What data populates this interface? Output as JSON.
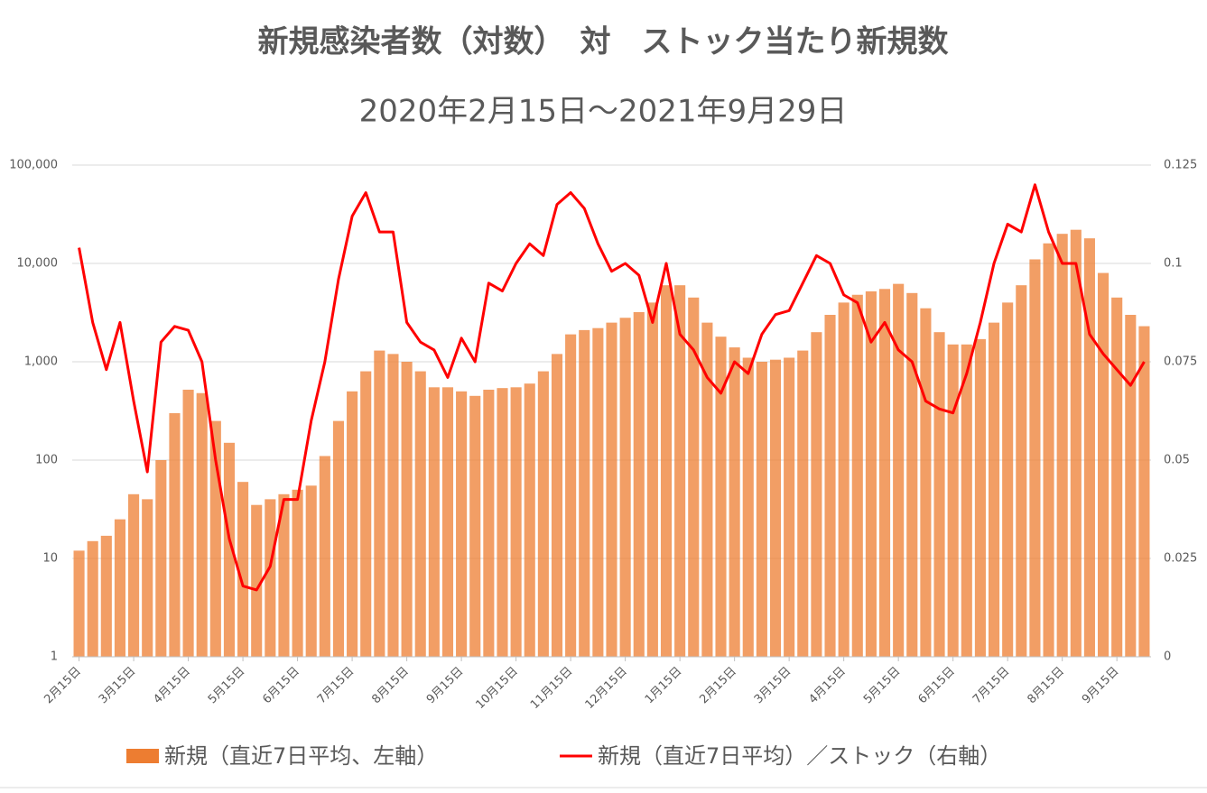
{
  "chart_data": {
    "type": "bar",
    "title": "新規感染者数（対数）　対　ストック当たり新規数",
    "subtitle": "2020年2月15日～2021年9月29日",
    "categories": [
      "2月15日",
      null,
      null,
      null,
      "3月15日",
      null,
      null,
      null,
      "4月15日",
      null,
      null,
      null,
      "5月15日",
      null,
      null,
      null,
      "6月15日",
      null,
      null,
      null,
      "7月15日",
      null,
      null,
      null,
      "8月15日",
      null,
      null,
      null,
      "9月15日",
      null,
      null,
      null,
      "10月15日",
      null,
      null,
      null,
      "11月15日",
      null,
      null,
      null,
      "12月15日",
      null,
      null,
      null,
      "1月15日",
      null,
      null,
      null,
      "2月15日",
      null,
      null,
      null,
      "3月15日",
      null,
      null,
      null,
      "4月15日",
      null,
      null,
      null,
      "5月15日",
      null,
      null,
      null,
      "6月15日",
      null,
      null,
      null,
      "7月15日",
      null,
      null,
      null,
      "8月15日",
      null,
      null,
      null,
      "9月15日",
      null,
      null
    ],
    "ylim": [
      1,
      100000
    ],
    "log_scale": true,
    "yticks": [
      1,
      10,
      100,
      {
        "value": 1000,
        "label": "1,000"
      },
      {
        "value": 10000,
        "label": "10,000"
      },
      {
        "value": 100000,
        "label": "100,000"
      }
    ],
    "y2lim": [
      0,
      0.125
    ],
    "y2ticks": [
      0,
      0.025,
      0.05,
      0.075,
      0.1,
      0.125
    ],
    "grid": true,
    "series": [
      {
        "name": "新規（直近7日平均、左軸）",
        "type": "bar",
        "color": "#ed7d31",
        "values": [
          12,
          15,
          17,
          25,
          45,
          40,
          100,
          300,
          520,
          480,
          250,
          150,
          60,
          35,
          40,
          45,
          50,
          55,
          110,
          250,
          500,
          800,
          1300,
          1200,
          1000,
          800,
          550,
          550,
          500,
          450,
          520,
          540,
          550,
          600,
          800,
          1200,
          1900,
          2100,
          2200,
          2500,
          2800,
          3200,
          4000,
          6000,
          6000,
          4500,
          2500,
          1800,
          1400,
          1100,
          1000,
          1050,
          1100,
          1300,
          2000,
          3000,
          4000,
          4800,
          5200,
          5500,
          6200,
          5000,
          3500,
          2000,
          1500,
          1500,
          1700,
          2500,
          4000,
          6000,
          11000,
          16000,
          20000,
          22000,
          18000,
          8000,
          4500,
          3000,
          2300
        ]
      },
      {
        "name": "新規（直近7日平均）／ストック（右軸）",
        "type": "line",
        "axis": "y2",
        "color": "#ff0000",
        "values": [
          0.104,
          0.085,
          0.073,
          0.085,
          0.065,
          0.047,
          0.08,
          0.084,
          0.083,
          0.075,
          0.05,
          0.03,
          0.018,
          0.017,
          0.023,
          0.04,
          0.04,
          0.06,
          0.075,
          0.096,
          0.112,
          0.118,
          0.108,
          0.108,
          0.085,
          0.08,
          0.078,
          0.071,
          0.081,
          0.075,
          0.095,
          0.093,
          0.1,
          0.105,
          0.102,
          0.115,
          0.118,
          0.114,
          0.105,
          0.098,
          0.1,
          0.097,
          0.085,
          0.1,
          0.082,
          0.078,
          0.071,
          0.067,
          0.075,
          0.072,
          0.082,
          0.087,
          0.088,
          0.095,
          0.102,
          0.1,
          0.092,
          0.09,
          0.08,
          0.085,
          0.078,
          0.075,
          0.065,
          0.063,
          0.062,
          0.072,
          0.085,
          0.1,
          0.11,
          0.108,
          0.12,
          0.108,
          0.1,
          0.1,
          0.082,
          0.077,
          0.073,
          0.069,
          0.075
        ]
      }
    ]
  }
}
